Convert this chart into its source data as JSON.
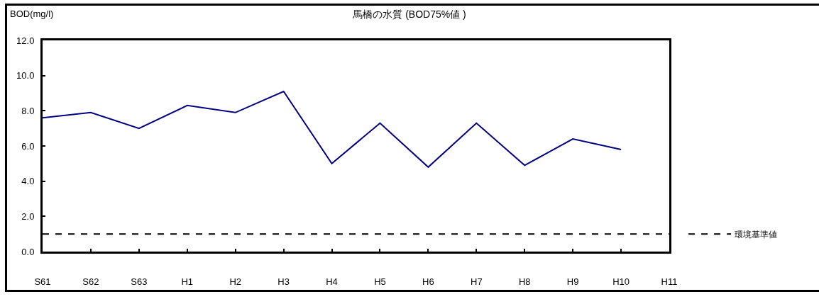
{
  "chart_data": {
    "type": "line",
    "title": "馬橋の水質 (BOD75%値 )",
    "ylabel": "BOD(mg/l)",
    "categories": [
      "S61",
      "S62",
      "S63",
      "H1",
      "H2",
      "H3",
      "H4",
      "H5",
      "H6",
      "H7",
      "H8",
      "H9",
      "H10",
      "H11"
    ],
    "series": [
      {
        "color": "#000080",
        "values": [
          7.6,
          7.9,
          7.0,
          8.3,
          7.9,
          9.1,
          5.0,
          7.3,
          4.8,
          7.3,
          4.9,
          6.4,
          5.8,
          null
        ]
      }
    ],
    "ylim": [
      0,
      12
    ],
    "yticks": [
      {
        "value": 0,
        "label": "0.0"
      },
      {
        "value": 2,
        "label": "2.0"
      },
      {
        "value": 4,
        "label": "4.0"
      },
      {
        "value": 6,
        "label": "6.0"
      },
      {
        "value": 8,
        "label": "8.0"
      },
      {
        "value": 10,
        "label": "10.0"
      },
      {
        "value": 12,
        "label": "12.0"
      }
    ],
    "ref_lines": [
      {
        "axis": "y",
        "value": 1.0,
        "label": "環境基準値",
        "color": "#000000",
        "line_style": "dashed"
      }
    ],
    "legend": "right",
    "marker": "none"
  }
}
